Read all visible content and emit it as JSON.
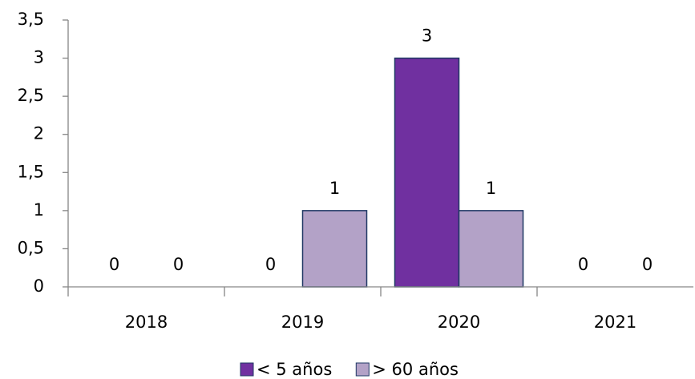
{
  "chart_data": {
    "type": "bar",
    "categories": [
      "2018",
      "2019",
      "2020",
      "2021"
    ],
    "series": [
      {
        "name": "< 5 años",
        "color": "#7030a0",
        "values": [
          0,
          0,
          3,
          0
        ]
      },
      {
        "name": "> 60 años",
        "color": "#b3a2c7",
        "values": [
          0,
          1,
          1,
          0
        ]
      }
    ],
    "ylim": [
      0,
      3.5
    ],
    "yticks": [
      0,
      {
        "value": 0.5,
        "label": "0,5"
      },
      1,
      {
        "value": 1.5,
        "label": "1,5"
      },
      2,
      {
        "value": 2.5,
        "label": "2,5"
      },
      3,
      {
        "value": 3.5,
        "label": "3,5"
      }
    ],
    "grid": false,
    "legend": "bottom"
  }
}
